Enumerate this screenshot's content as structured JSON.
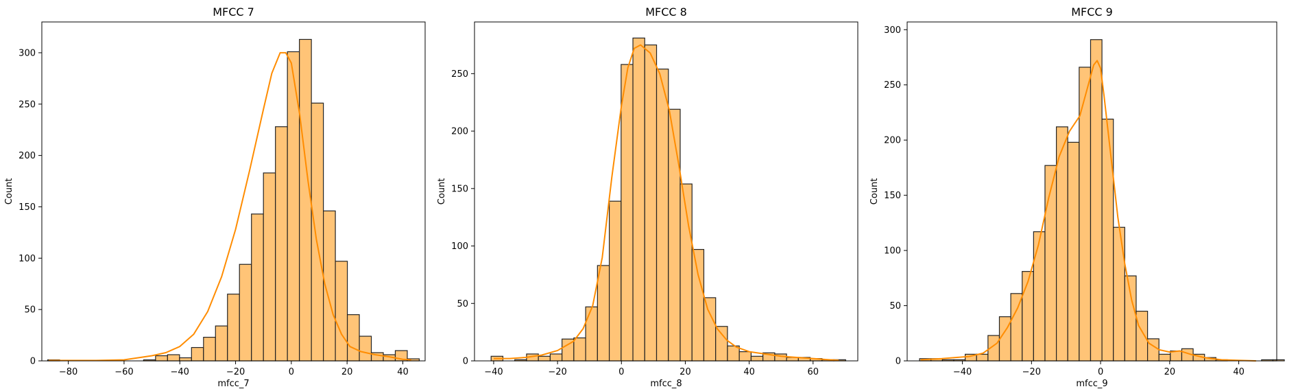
{
  "chart_data": [
    {
      "type": "bar",
      "title": "MFCC 7",
      "xlabel": "mfcc_7",
      "ylabel": "Count",
      "xlim": [
        -89.5,
        48
      ],
      "ylim": [
        0,
        330
      ],
      "xticks": [
        -80,
        -60,
        -40,
        -20,
        0,
        20,
        40
      ],
      "yticks": [
        0,
        50,
        100,
        150,
        200,
        250,
        300
      ],
      "grid": false,
      "bin_start": -87.4,
      "bin_width": 4.3,
      "counts": [
        1,
        0,
        0,
        0,
        0,
        0,
        0,
        0,
        1,
        5,
        6,
        3,
        13,
        23,
        34,
        65,
        94,
        143,
        183,
        228,
        301,
        313,
        251,
        146,
        97,
        45,
        24,
        8,
        6,
        10,
        2
      ],
      "kde": [
        [
          -87,
          0.4
        ],
        [
          -70,
          0.4
        ],
        [
          -60,
          1
        ],
        [
          -55,
          3
        ],
        [
          -50,
          5
        ],
        [
          -45,
          8
        ],
        [
          -40,
          14
        ],
        [
          -35,
          26
        ],
        [
          -30,
          48
        ],
        [
          -25,
          82
        ],
        [
          -20,
          128
        ],
        [
          -15,
          185
        ],
        [
          -10,
          245
        ],
        [
          -7,
          280
        ],
        [
          -4,
          300
        ],
        [
          -2,
          300
        ],
        [
          0,
          290
        ],
        [
          3,
          240
        ],
        [
          6,
          175
        ],
        [
          9,
          118
        ],
        [
          12,
          75
        ],
        [
          15,
          45
        ],
        [
          18,
          26
        ],
        [
          21,
          14
        ],
        [
          25,
          9
        ],
        [
          30,
          6
        ],
        [
          35,
          4
        ],
        [
          40,
          1.5
        ],
        [
          43,
          1
        ]
      ],
      "bar_color": "#ffc477",
      "edge_color": "#222222",
      "kde_color": "#ff8c00"
    },
    {
      "type": "bar",
      "title": "MFCC 8",
      "xlabel": "mfcc_8",
      "ylabel": "Count",
      "xlim": [
        -46,
        74
      ],
      "ylim": [
        0,
        295
      ],
      "xticks": [
        -40,
        -20,
        0,
        20,
        40,
        60
      ],
      "yticks": [
        0,
        50,
        100,
        150,
        200,
        250
      ],
      "grid": false,
      "bin_start": -40.8,
      "bin_width": 3.7,
      "counts": [
        4,
        0,
        1,
        6,
        4,
        6,
        19,
        20,
        47,
        83,
        139,
        258,
        281,
        275,
        254,
        219,
        154,
        97,
        55,
        30,
        13,
        8,
        4,
        7,
        6,
        3,
        3,
        2,
        1,
        1
      ],
      "kde": [
        [
          -40,
          2
        ],
        [
          -35,
          2
        ],
        [
          -30,
          3
        ],
        [
          -25,
          5
        ],
        [
          -20,
          9
        ],
        [
          -15,
          17
        ],
        [
          -12,
          28
        ],
        [
          -9,
          48
        ],
        [
          -6,
          90
        ],
        [
          -3,
          160
        ],
        [
          0,
          222
        ],
        [
          2,
          255
        ],
        [
          4,
          272
        ],
        [
          6,
          275
        ],
        [
          9,
          268
        ],
        [
          12,
          250
        ],
        [
          15,
          218
        ],
        [
          18,
          170
        ],
        [
          21,
          118
        ],
        [
          24,
          75
        ],
        [
          27,
          45
        ],
        [
          30,
          28
        ],
        [
          33,
          18
        ],
        [
          36,
          12
        ],
        [
          40,
          8
        ],
        [
          45,
          6
        ],
        [
          50,
          4
        ],
        [
          55,
          3
        ],
        [
          60,
          2
        ],
        [
          65,
          1
        ],
        [
          68,
          0.5
        ]
      ],
      "bar_color": "#ffc477",
      "edge_color": "#222222",
      "kde_color": "#ff8c00"
    },
    {
      "type": "bar",
      "title": "MFCC 9",
      "xlabel": "mfcc_9",
      "ylabel": "Count",
      "xlim": [
        -56,
        51
      ],
      "ylim": [
        0,
        307
      ],
      "xticks": [
        -40,
        -20,
        0,
        20,
        40
      ],
      "yticks": [
        0,
        50,
        100,
        150,
        200,
        250,
        300
      ],
      "grid": false,
      "bin_start": -52.4,
      "bin_width": 3.3,
      "counts": [
        2,
        2,
        1,
        1,
        6,
        6,
        23,
        40,
        61,
        81,
        117,
        177,
        212,
        198,
        266,
        291,
        219,
        121,
        77,
        45,
        20,
        6,
        9,
        11,
        6,
        3,
        1,
        0,
        0,
        0,
        1,
        1
      ],
      "kde": [
        [
          -52,
          1
        ],
        [
          -46,
          2
        ],
        [
          -42,
          3
        ],
        [
          -38,
          4
        ],
        [
          -34,
          7
        ],
        [
          -30,
          16
        ],
        [
          -27,
          30
        ],
        [
          -24,
          48
        ],
        [
          -21,
          72
        ],
        [
          -18,
          105
        ],
        [
          -15,
          148
        ],
        [
          -12,
          185
        ],
        [
          -9,
          208
        ],
        [
          -6,
          222
        ],
        [
          -4,
          245
        ],
        [
          -2,
          268
        ],
        [
          -1,
          272
        ],
        [
          0,
          265
        ],
        [
          1,
          240
        ],
        [
          3,
          185
        ],
        [
          5,
          130
        ],
        [
          7,
          88
        ],
        [
          9,
          55
        ],
        [
          11,
          32
        ],
        [
          14,
          16
        ],
        [
          17,
          10
        ],
        [
          20,
          8
        ],
        [
          23,
          9
        ],
        [
          26,
          6
        ],
        [
          30,
          3
        ],
        [
          35,
          1
        ],
        [
          40,
          0.5
        ],
        [
          45,
          0
        ]
      ],
      "bar_color": "#ffc477",
      "edge_color": "#222222",
      "kde_color": "#ff8c00"
    }
  ]
}
